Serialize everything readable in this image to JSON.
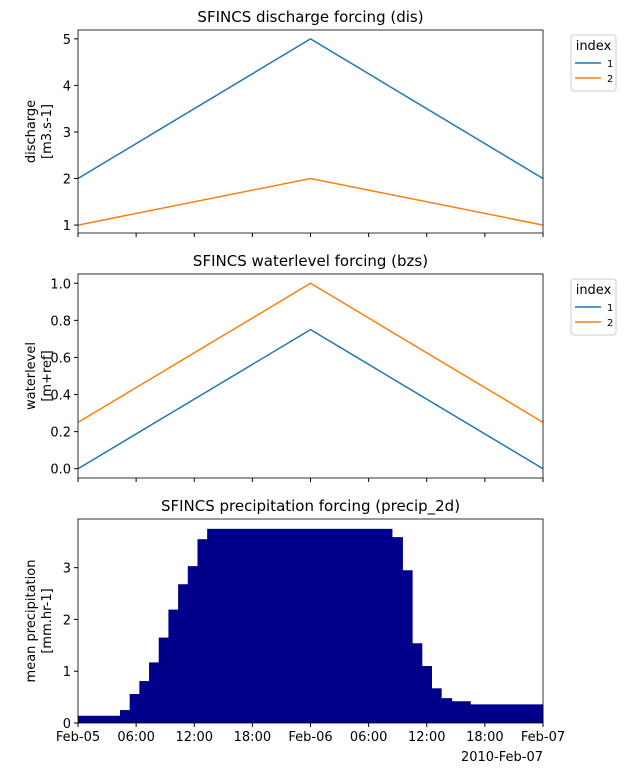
{
  "chart_data": [
    {
      "type": "line",
      "title": "SFINCS discharge forcing (dis)",
      "ylabel": [
        "discharge",
        "[m3.s-1]"
      ],
      "x": [
        "2010-02-05 00:00",
        "2010-02-06 00:00",
        "2010-02-07 00:00"
      ],
      "ylim": [
        0.83,
        5.19
      ],
      "yticks": [
        1,
        2,
        3,
        4,
        5
      ],
      "legend": {
        "title": "index",
        "placement": "outside-top-right"
      },
      "series": [
        {
          "name": "1",
          "values": [
            2,
            5,
            2
          ],
          "color": "#1f77b4"
        },
        {
          "name": "2",
          "values": [
            1,
            2,
            1
          ],
          "color": "#ff7f0e"
        }
      ]
    },
    {
      "type": "line",
      "title": "SFINCS waterlevel forcing (bzs)",
      "ylabel": [
        "waterlevel",
        "[m+ref]"
      ],
      "x": [
        "2010-02-05 00:00",
        "2010-02-06 00:00",
        "2010-02-07 00:00"
      ],
      "ylim": [
        -0.05,
        1.05
      ],
      "yticks": [
        "0.0",
        "0.2",
        "0.4",
        "0.6",
        "0.8",
        "1.0"
      ],
      "legend": {
        "title": "index",
        "placement": "outside-top-right"
      },
      "series": [
        {
          "name": "1",
          "values": [
            0,
            0.75,
            0
          ],
          "color": "#1f77b4"
        },
        {
          "name": "2",
          "values": [
            0.25,
            1.0,
            0.25
          ],
          "color": "#ff7f0e"
        }
      ]
    },
    {
      "type": "area",
      "title": "SFINCS precipitation forcing (precip_2d)",
      "ylabel": [
        "mean precipitation",
        "[mm.hr-1]"
      ],
      "color": "#00008b",
      "ylim": [
        0,
        3.94
      ],
      "yticks": [
        0,
        1,
        2,
        3
      ],
      "step_start": [
        "2010-02-05 00:00",
        "2010-02-05 04:20",
        "2010-02-05 05:20",
        "2010-02-05 06:20",
        "2010-02-05 07:20",
        "2010-02-05 08:20",
        "2010-02-05 09:20",
        "2010-02-05 10:20",
        "2010-02-05 11:20",
        "2010-02-05 12:20",
        "2010-02-05 13:20",
        "2010-02-06 08:25",
        "2010-02-06 09:30",
        "2010-02-06 10:30",
        "2010-02-06 11:30",
        "2010-02-06 12:30",
        "2010-02-06 13:30",
        "2010-02-06 14:35",
        "2010-02-06 16:30"
      ],
      "step_end": "2010-02-07 00:00",
      "values": [
        0.14,
        0.25,
        0.56,
        0.81,
        1.17,
        1.65,
        2.19,
        2.68,
        3.03,
        3.55,
        3.75,
        3.59,
        2.95,
        1.54,
        1.1,
        0.67,
        0.48,
        0.42,
        0.36
      ]
    }
  ],
  "xaxis": {
    "xlim": [
      "2010-02-05 00:00",
      "2010-02-07 00:00"
    ],
    "ticklabels": [
      "Feb-05",
      "06:00",
      "12:00",
      "18:00",
      "Feb-06",
      "06:00",
      "12:00",
      "18:00",
      "Feb-07"
    ],
    "offset_label": "2010-Feb-07"
  }
}
